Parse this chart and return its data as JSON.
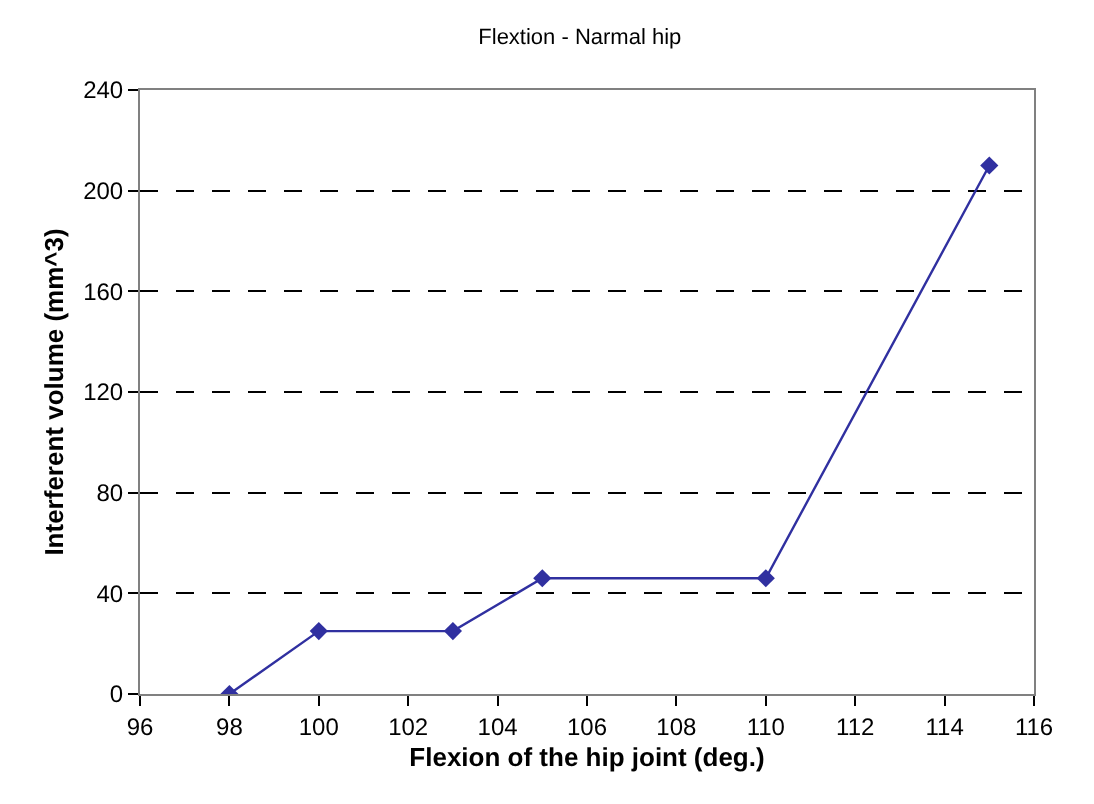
{
  "chart_data": {
    "type": "line",
    "title": "Flextion - Narmal hip",
    "xlabel": "Flexion of the hip joint (deg.)",
    "ylabel": "Interferent volume (mm^3)",
    "x": [
      98,
      100,
      103,
      105,
      110,
      115
    ],
    "series": [
      {
        "color": "#3030a0",
        "values": [
          0,
          25,
          25,
          46,
          46,
          210
        ]
      }
    ],
    "marker": "diamond",
    "line_style": "solid",
    "xlim": [
      96,
      116
    ],
    "xticks": [
      96,
      98,
      100,
      102,
      104,
      106,
      108,
      110,
      112,
      114,
      116
    ],
    "ylim": [
      0,
      240
    ],
    "yticks": [
      0,
      40,
      80,
      120,
      160,
      200,
      240
    ],
    "grid": "y",
    "legend": false
  }
}
